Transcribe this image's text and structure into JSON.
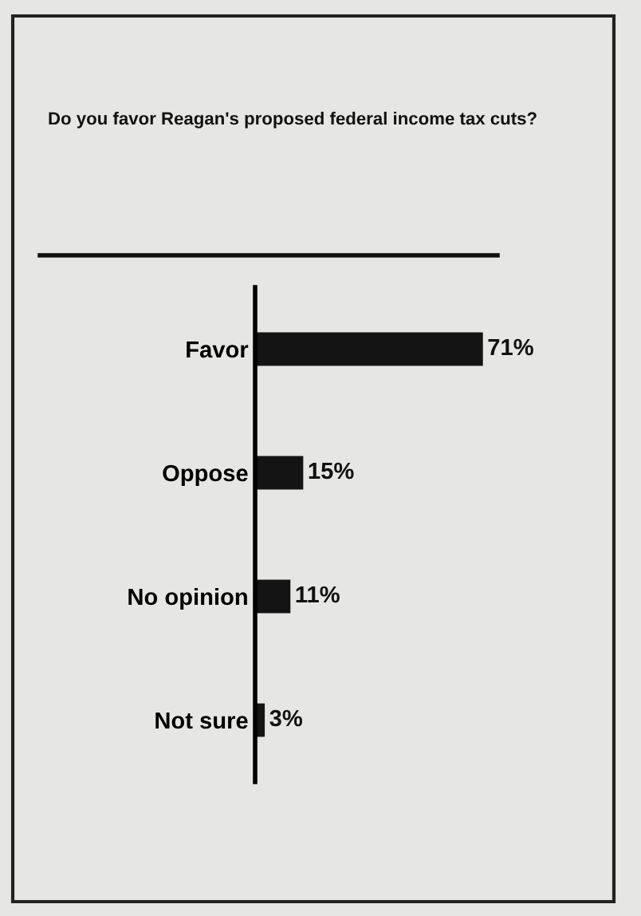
{
  "chart_data": {
    "type": "bar",
    "orientation": "horizontal",
    "title": "Do you favor Reagan's proposed federal income tax cuts?",
    "categories": [
      "Favor",
      "Oppose",
      "No opinion",
      "Not sure"
    ],
    "values": [
      71,
      15,
      11,
      3
    ],
    "value_labels": [
      "71%",
      "15%",
      "11%",
      "3%"
    ],
    "color": "#141414",
    "tick_labels": "y"
  }
}
